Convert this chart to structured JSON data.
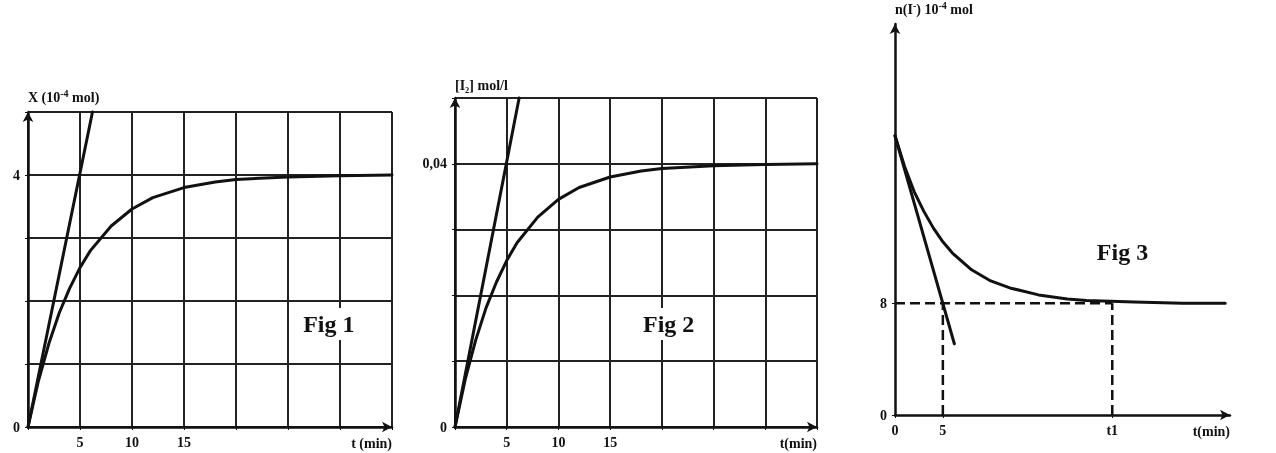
{
  "chart_data": [
    {
      "type": "line",
      "xlabel": "t (min)",
      "ylabel": "X (10$^{-4}$ mol)",
      "annotations": [
        "Fig 1"
      ],
      "xlim": [
        0,
        35
      ],
      "ylim": [
        0,
        5
      ],
      "xticks": [
        {
          "value": 0,
          "label": null
        },
        5,
        10,
        15,
        {
          "value": 20,
          "label": null
        },
        {
          "value": 25,
          "label": null
        },
        {
          "value": 30,
          "label": null
        },
        {
          "value": 35,
          "label": null
        }
      ],
      "yticks": [
        0,
        {
          "value": 1,
          "label": null
        },
        {
          "value": 2,
          "label": null
        },
        {
          "value": 3,
          "label": null
        },
        4,
        {
          "value": 5,
          "label": null
        }
      ],
      "grid": true,
      "marker": "none",
      "line_style": "solid",
      "series": [
        {
          "color": "#111111",
          "x": [
            0,
            1,
            2,
            3,
            4,
            5,
            6,
            8,
            10,
            12,
            15,
            18,
            20,
            25,
            30,
            35
          ],
          "values": [
            0,
            0.73,
            1.32,
            1.81,
            2.2,
            2.53,
            2.8,
            3.19,
            3.46,
            3.64,
            3.8,
            3.89,
            3.93,
            3.97,
            3.99,
            4.0
          ]
        },
        {
          "color": "#111111",
          "x": [
            0,
            6.2
          ],
          "values": [
            0,
            5.0
          ]
        }
      ]
    },
    {
      "type": "line",
      "xlabel": "t(min)",
      "ylabel": "[I₂] mol/l",
      "annotations": [
        "Fig 2"
      ],
      "xlim": [
        0,
        35
      ],
      "ylim": [
        0,
        0.05
      ],
      "xticks": [
        {
          "value": 0,
          "label": null
        },
        5,
        10,
        15,
        {
          "value": 20,
          "label": null
        },
        {
          "value": 25,
          "label": null
        },
        {
          "value": 30,
          "label": null
        },
        {
          "value": 35,
          "label": null
        }
      ],
      "yticks": [
        0,
        {
          "value": 0.01,
          "label": null
        },
        {
          "value": 0.02,
          "label": null
        },
        {
          "value": 0.03,
          "label": null
        },
        {
          "value": 0.04,
          "label": "0,04"
        },
        {
          "value": 0.05,
          "label": null
        }
      ],
      "grid": true,
      "marker": "none",
      "line_style": "solid",
      "series": [
        {
          "color": "#111111",
          "x": [
            0,
            1,
            2,
            3,
            4,
            5,
            6,
            8,
            10,
            12,
            15,
            18,
            20,
            25,
            30,
            35
          ],
          "values": [
            0,
            0.0073,
            0.0132,
            0.0181,
            0.022,
            0.0253,
            0.028,
            0.0319,
            0.0346,
            0.0364,
            0.038,
            0.0389,
            0.0393,
            0.0397,
            0.0399,
            0.04
          ]
        },
        {
          "color": "#111111",
          "x": [
            0,
            6.2
          ],
          "values": [
            0,
            0.05
          ]
        }
      ]
    },
    {
      "type": "line",
      "xlabel": "t(min)",
      "ylabel": "n(I$^{-}$) 10$^{-4}$ mol",
      "annotations": [
        "Fig 3"
      ],
      "xlim": [
        0,
        35
      ],
      "ylim": [
        0,
        28
      ],
      "xticks": [
        0,
        5,
        {
          "value": 22.7,
          "label": "t1"
        }
      ],
      "yticks": [
        0,
        8
      ],
      "grid": false,
      "marker": "none",
      "line_style": "solid",
      "ref_lines": [
        {
          "axis": "y",
          "value": 8,
          "line_style": "dashed",
          "color": "#111111"
        },
        {
          "axis": "x",
          "value": 5,
          "line_style": "dashed",
          "color": "#111111"
        },
        {
          "axis": "x",
          "value": 22.7,
          "line_style": "dashed",
          "color": "#111111"
        }
      ],
      "series": [
        {
          "color": "#111111",
          "x": [
            0,
            1,
            2,
            3,
            4,
            5,
            6,
            8,
            10,
            12,
            15,
            18,
            20,
            25,
            30,
            34.5
          ],
          "values": [
            20,
            17.8,
            16,
            14.6,
            13.4,
            12.4,
            11.6,
            10.4,
            9.6,
            9.1,
            8.6,
            8.3,
            8.2,
            8.1,
            8.0,
            8.0
          ]
        },
        {
          "color": "#111111",
          "x": [
            0,
            6.2
          ],
          "values": [
            20,
            5.1
          ]
        }
      ]
    }
  ]
}
